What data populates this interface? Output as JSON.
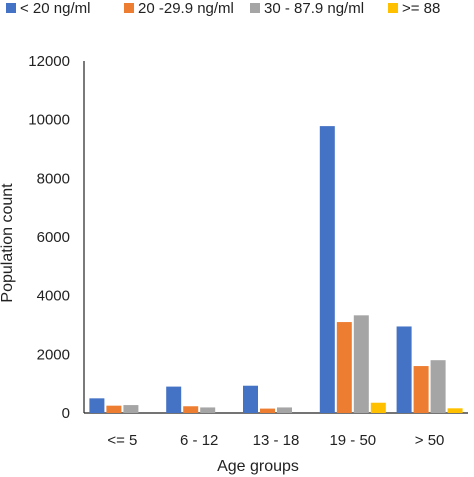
{
  "chart_data": {
    "type": "bar",
    "title": "",
    "xlabel": "Age groups",
    "ylabel": "Population count",
    "categories": [
      "<= 5",
      "6 - 12",
      "13 - 18",
      "19 - 50",
      "> 50"
    ],
    "series": [
      {
        "name": "< 20 ng/ml",
        "color": "#4472C4",
        "values": [
          500,
          900,
          930,
          9780,
          2950
        ]
      },
      {
        "name": "20 -29.9 ng/ml",
        "color": "#ED7D31",
        "values": [
          250,
          230,
          150,
          3100,
          1600
        ]
      },
      {
        "name": "30 - 87.9 ng/ml",
        "color": "#A5A5A5",
        "values": [
          270,
          190,
          190,
          3330,
          1800
        ]
      },
      {
        "name": ">= 88",
        "color": "#FFC000",
        "values": [
          0,
          0,
          0,
          350,
          160
        ]
      }
    ],
    "ylim": [
      0,
      12000
    ],
    "yticks": [
      "0",
      "2000",
      "4000",
      "6000",
      "8000",
      "10000",
      "12000"
    ],
    "grid": false,
    "legend_position": "top"
  }
}
